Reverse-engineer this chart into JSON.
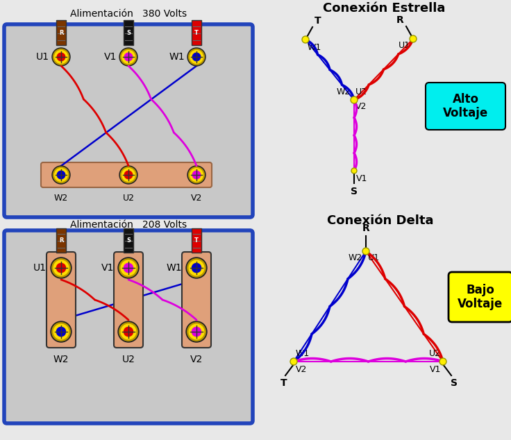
{
  "bg_color": "#e8e8e8",
  "title_380": "Alimentación   380 Volts",
  "title_208": "Alimentación   208 Volts",
  "title_estrella": "Conexión Estrella",
  "title_delta": "Conexión Delta",
  "alto_voltaje": "Alto\nVoltaje",
  "bajo_voltaje": "Bajo\nVoltaje",
  "color_red": "#dd0000",
  "color_blue": "#0000cc",
  "color_magenta": "#dd00dd",
  "color_brown": "#7B3500",
  "color_black": "#111111",
  "color_peach": "#dfa07a",
  "color_box_inner": "#c8c8c8",
  "color_cyan": "#00eeee",
  "color_yellow": "#ffee00",
  "color_border_blue": "#2244bb",
  "color_dark_yellow": "#bb9900"
}
